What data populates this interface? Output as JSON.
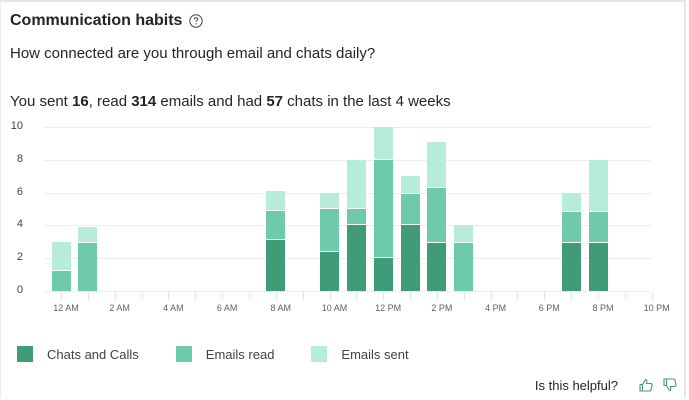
{
  "card": {
    "title": "Communication habits",
    "help_icon": "question-circle-icon",
    "subtitle": "How connected are you through email and chats daily?",
    "summary": {
      "prefix": "You sent ",
      "sent": "16",
      "mid1": ", read ",
      "read": "314",
      "mid2": " emails and had ",
      "chats": "57",
      "suffix": " chats in the last 4 weeks"
    },
    "footer": {
      "question": "Is this helpful?",
      "thumbs_up_icon": "thumbs-up-icon",
      "thumbs_down_icon": "thumbs-down-icon"
    }
  },
  "colors": {
    "chats_and_calls": "#3f9c77",
    "emails_read": "#6fcaa9",
    "emails_sent": "#b6ecd9",
    "gridline": "#ededed",
    "border": "#e6e6e6"
  },
  "legend": [
    {
      "label": "Chats and Calls",
      "color": "#3f9c77"
    },
    {
      "label": "Emails read",
      "color": "#6fcaa9"
    },
    {
      "label": "Emails sent",
      "color": "#b6ecd9"
    }
  ],
  "chart_data": {
    "type": "bar",
    "stacked": true,
    "title": "",
    "xlabel": "",
    "ylabel": "",
    "ylim": [
      0,
      10
    ],
    "yticks": [
      0,
      2,
      4,
      6,
      8,
      10
    ],
    "grid": true,
    "legend_position": "bottom",
    "x_tick_labels": [
      "12 AM",
      "2 AM",
      "4 AM",
      "6 AM",
      "8 AM",
      "10 AM",
      "12 PM",
      "2 PM",
      "4 PM",
      "6 PM",
      "8 PM",
      "10 PM"
    ],
    "categories": [
      "12 AM",
      "1 AM",
      "2 AM",
      "3 AM",
      "4 AM",
      "5 AM",
      "6 AM",
      "7 AM",
      "8 AM",
      "9 AM",
      "10 AM",
      "11 AM",
      "12 PM",
      "1 PM",
      "2 PM",
      "3 PM",
      "4 PM",
      "5 PM",
      "6 PM",
      "7 PM",
      "8 PM",
      "9 PM"
    ],
    "series": [
      {
        "name": "Chats and Calls",
        "values": [
          0,
          0,
          0,
          0,
          0,
          0,
          0,
          0,
          3.1,
          0,
          2.4,
          4.0,
          2.0,
          4.0,
          2.9,
          0,
          0,
          0,
          0,
          2.9,
          2.9,
          0
        ]
      },
      {
        "name": "Emails read",
        "values": [
          1.2,
          2.9,
          0,
          0,
          0,
          0,
          0,
          0,
          1.8,
          0,
          2.6,
          1.0,
          6.0,
          1.9,
          3.4,
          2.9,
          0,
          0,
          0,
          1.9,
          1.9,
          0
        ]
      },
      {
        "name": "Emails sent",
        "values": [
          1.8,
          1.0,
          0,
          0,
          0,
          0,
          0,
          0,
          1.2,
          0,
          1.0,
          3.0,
          2.0,
          1.1,
          2.8,
          1.1,
          0,
          0,
          0,
          1.2,
          3.2,
          0
        ]
      }
    ]
  }
}
